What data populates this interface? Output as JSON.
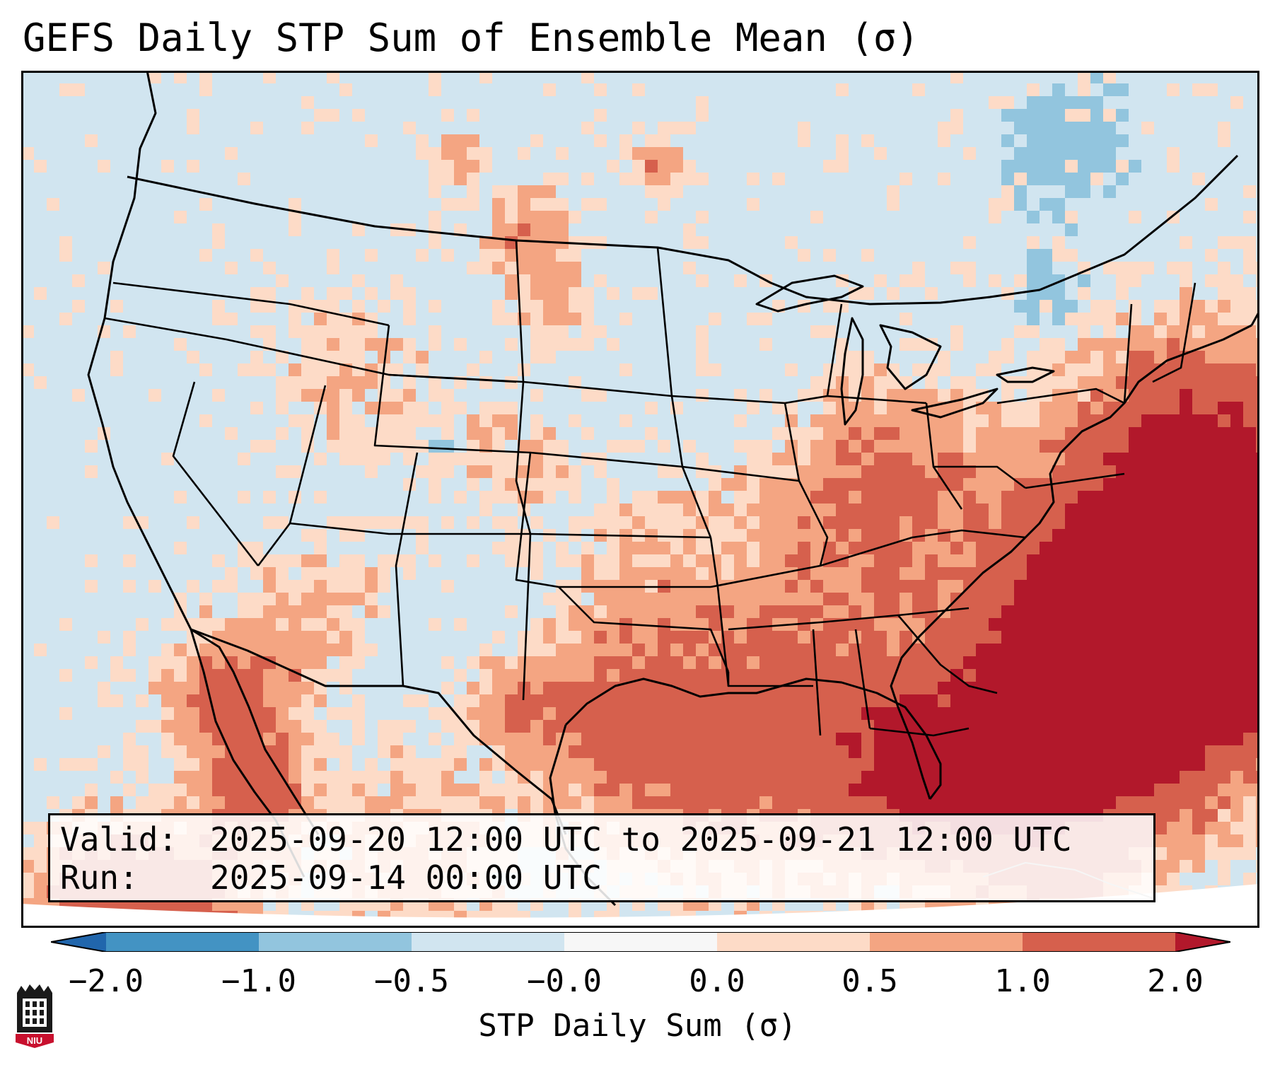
{
  "title": "GEFS Daily STP Sum of Ensemble Mean (σ)",
  "info": {
    "valid_label": "Valid:",
    "valid_value": "2025-09-20 12:00 UTC to 2025-09-21 12:00 UTC",
    "run_label": "Run:",
    "run_value": "2025-09-14 00:00 UTC"
  },
  "colorbar": {
    "label": "STP Daily Sum (σ)",
    "ticks": [
      "−2.0",
      "−1.0",
      "−0.5",
      "−0.0",
      "0.0",
      "0.5",
      "1.0",
      "2.0"
    ],
    "bins": [
      {
        "range": "< -2.0",
        "color": "#2166ac"
      },
      {
        "range": "-2.0 to -1.0",
        "color": "#4393c3"
      },
      {
        "range": "-1.0 to -0.5",
        "color": "#92c5de"
      },
      {
        "range": "-0.5 to -0.0",
        "color": "#d1e5f0"
      },
      {
        "range": "-0.0 to 0.0",
        "color": "#f7f7f7"
      },
      {
        "range": "0.0 to 0.5",
        "color": "#fddbc7"
      },
      {
        "range": "0.5 to 1.0",
        "color": "#f4a582"
      },
      {
        "range": "1.0 to 2.0",
        "color": "#d6604d"
      },
      {
        "range": "> 2.0",
        "color": "#b2182b"
      }
    ]
  },
  "map": {
    "background_color": "#d1e5f0",
    "region": "Continental United States, northern Mexico, Gulf of Mexico, western Atlantic",
    "anomaly_regions": [
      {
        "area": "western Atlantic off Southeast coast",
        "level": "1.0 to >2.0"
      },
      {
        "area": "Gulf of Mexico / Gulf coast",
        "level": "0.0 to >2.0"
      },
      {
        "area": "Florida peninsula",
        "level": "0.5 to >2.0"
      },
      {
        "area": "Gulf of California / Baja",
        "level": "1.0 to >2.0"
      },
      {
        "area": "Tennessee / Ohio valleys",
        "level": "0.0 to 1.0"
      },
      {
        "area": "northern High Plains",
        "level": "0.0 to >2.0"
      },
      {
        "area": "southern Quebec / New England",
        "level": "-1.0 to -0.5"
      },
      {
        "area": "Colorado",
        "level": "-1.0 to -0.5"
      }
    ]
  },
  "logo_text": "NIU"
}
